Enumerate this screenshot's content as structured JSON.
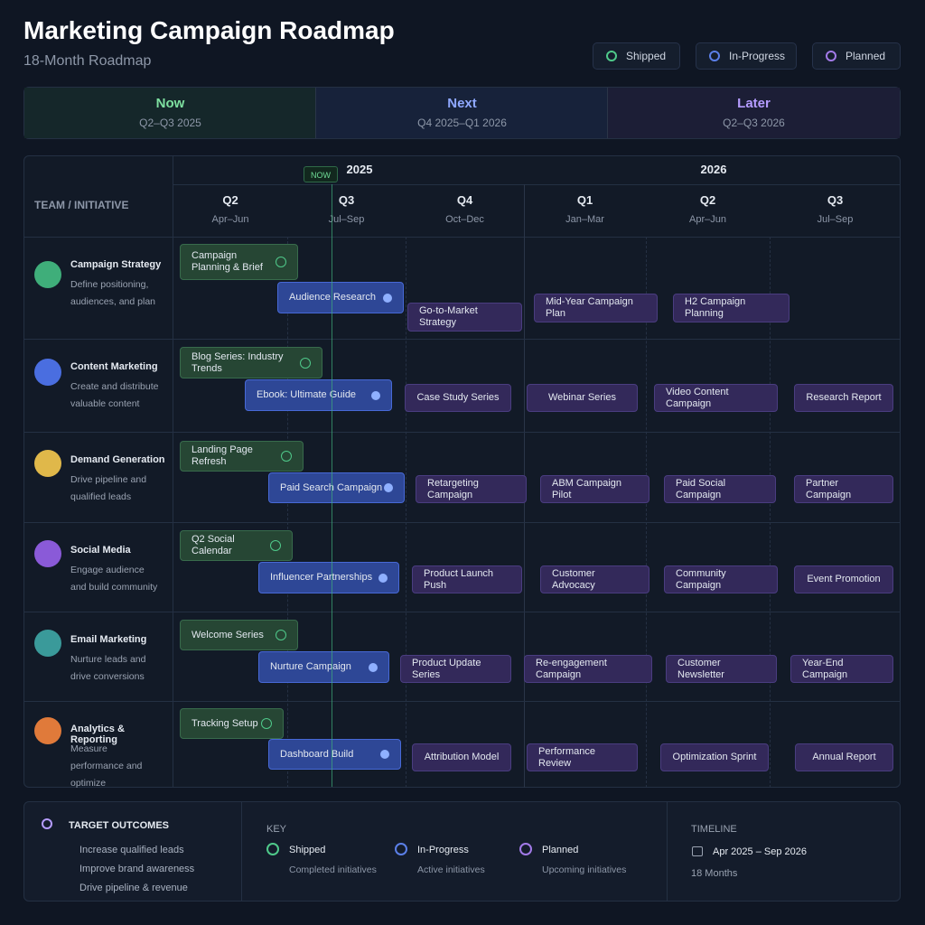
{
  "header": {
    "title": "Marketing Campaign Roadmap",
    "subtitle": "18-Month Roadmap"
  },
  "legend": [
    "Shipped",
    "In-Progress",
    "Planned"
  ],
  "phases": [
    {
      "name": "Now",
      "range": "Q2–Q3 2025"
    },
    {
      "name": "Next",
      "range": "Q4 2025–Q1 2026"
    },
    {
      "name": "Later",
      "range": "Q2–Q3 2026"
    }
  ],
  "column_header": "TEAM / INITIATIVE",
  "now_marker": "NOW",
  "years": [
    "2025",
    "2026"
  ],
  "quarters": [
    {
      "q": "Q2",
      "months": "Apr–Jun"
    },
    {
      "q": "Q3",
      "months": "Jul–Sep"
    },
    {
      "q": "Q4",
      "months": "Oct–Dec"
    },
    {
      "q": "Q1",
      "months": "Jan–Mar"
    },
    {
      "q": "Q2",
      "months": "Apr–Jun"
    },
    {
      "q": "Q3",
      "months": "Jul–Sep"
    }
  ],
  "teams": [
    {
      "name": "Campaign Strategy",
      "description": "Define positioning, audiences, and plan",
      "initiatives": [
        {
          "label": "Campaign Planning & Brief",
          "status": "Shipped"
        },
        {
          "label": "Audience Research",
          "status": "In-Progress"
        },
        {
          "label": "Go-to-Market Strategy",
          "status": "Planned"
        },
        {
          "label": "Mid-Year Campaign Plan",
          "status": "Planned"
        },
        {
          "label": "H2 Campaign Planning",
          "status": "Planned"
        }
      ]
    },
    {
      "name": "Content Marketing",
      "description": "Create and distribute valuable content",
      "initiatives": [
        {
          "label": "Blog Series: Industry Trends",
          "status": "Shipped"
        },
        {
          "label": "Ebook: Ultimate Guide",
          "status": "In-Progress"
        },
        {
          "label": "Case Study Series",
          "status": "Planned"
        },
        {
          "label": "Webinar Series",
          "status": "Planned"
        },
        {
          "label": "Video Content Campaign",
          "status": "Planned"
        },
        {
          "label": "Research Report",
          "status": "Planned"
        }
      ]
    },
    {
      "name": "Demand Generation",
      "description": "Drive pipeline and qualified leads",
      "initiatives": [
        {
          "label": "Landing Page Refresh",
          "status": "Shipped"
        },
        {
          "label": "Paid Search Campaign",
          "status": "In-Progress"
        },
        {
          "label": "Retargeting Campaign",
          "status": "Planned"
        },
        {
          "label": "ABM Campaign Pilot",
          "status": "Planned"
        },
        {
          "label": "Paid Social Campaign",
          "status": "Planned"
        },
        {
          "label": "Partner Campaign",
          "status": "Planned"
        }
      ]
    },
    {
      "name": "Social Media",
      "description": "Engage audience and build community",
      "initiatives": [
        {
          "label": "Q2 Social Calendar",
          "status": "Shipped"
        },
        {
          "label": "Influencer Partnerships",
          "status": "In-Progress"
        },
        {
          "label": "Product Launch Push",
          "status": "Planned"
        },
        {
          "label": "Customer Advocacy",
          "status": "Planned"
        },
        {
          "label": "Community Campaign",
          "status": "Planned"
        },
        {
          "label": "Event Promotion",
          "status": "Planned"
        }
      ]
    },
    {
      "name": "Email Marketing",
      "description": "Nurture leads and drive conversions",
      "initiatives": [
        {
          "label": "Welcome Series",
          "status": "Shipped"
        },
        {
          "label": "Nurture Campaign",
          "status": "In-Progress"
        },
        {
          "label": "Product Update Series",
          "status": "Planned"
        },
        {
          "label": "Re-engagement Campaign",
          "status": "Planned"
        },
        {
          "label": "Customer Newsletter",
          "status": "Planned"
        },
        {
          "label": "Year-End Campaign",
          "status": "Planned"
        }
      ]
    },
    {
      "name": "Analytics & Reporting",
      "description": "Measure performance and optimize",
      "initiatives": [
        {
          "label": "Tracking Setup",
          "status": "Shipped"
        },
        {
          "label": "Dashboard Build",
          "status": "In-Progress"
        },
        {
          "label": "Attribution Model",
          "status": "Planned"
        },
        {
          "label": "Performance Review",
          "status": "Planned"
        },
        {
          "label": "Optimization Sprint",
          "status": "Planned"
        },
        {
          "label": "Annual Report",
          "status": "Planned"
        }
      ]
    }
  ],
  "footer": {
    "outcomes": {
      "title": "TARGET OUTCOMES",
      "items": [
        "Increase qualified leads",
        "Improve brand awareness",
        "Drive pipeline & revenue"
      ]
    },
    "key": {
      "title": "KEY",
      "items": [
        {
          "label": "Shipped",
          "desc": "Completed initiatives"
        },
        {
          "label": "In-Progress",
          "desc": "Active initiatives"
        },
        {
          "label": "Planned",
          "desc": "Upcoming initiatives"
        }
      ]
    },
    "timeline": {
      "title": "TIMELINE",
      "range": "Apr 2025 – Sep 2026",
      "duration": "18 Months"
    }
  }
}
